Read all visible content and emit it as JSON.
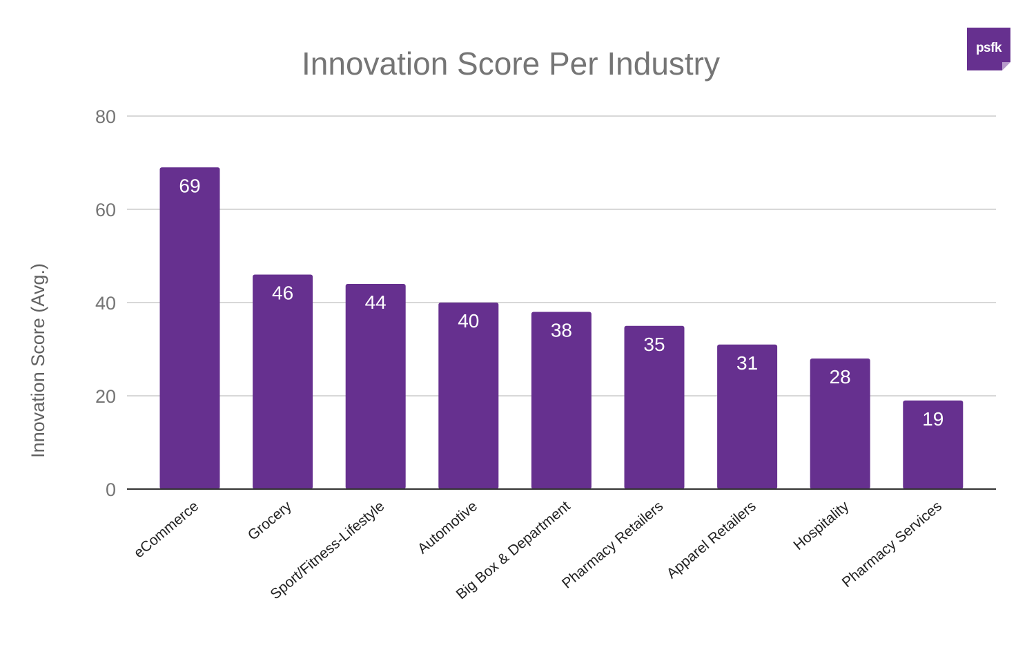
{
  "logo": {
    "text": "psfk",
    "color": "#66308f"
  },
  "chart_data": {
    "type": "bar",
    "title": "Innovation Score Per Industry",
    "xlabel": "",
    "ylabel": "Innovation Score (Avg.)",
    "ylim": [
      0,
      80
    ],
    "yticks": [
      0,
      20,
      40,
      60,
      80
    ],
    "grid": true,
    "legend": "none",
    "bar_color": "#66308f",
    "categories": [
      "eCommerce",
      "Grocery",
      "Sport/Fitness-Lifestyle",
      "Automotive",
      "Big Box & Department",
      "Pharmacy Retailers",
      "Apparel Retailers",
      "Hospitality",
      "Pharmacy Services"
    ],
    "values": [
      69,
      46,
      44,
      40,
      38,
      35,
      31,
      28,
      19
    ],
    "data_labels": [
      "69",
      "46",
      "44",
      "40",
      "38",
      "35",
      "31",
      "28",
      "19"
    ]
  }
}
